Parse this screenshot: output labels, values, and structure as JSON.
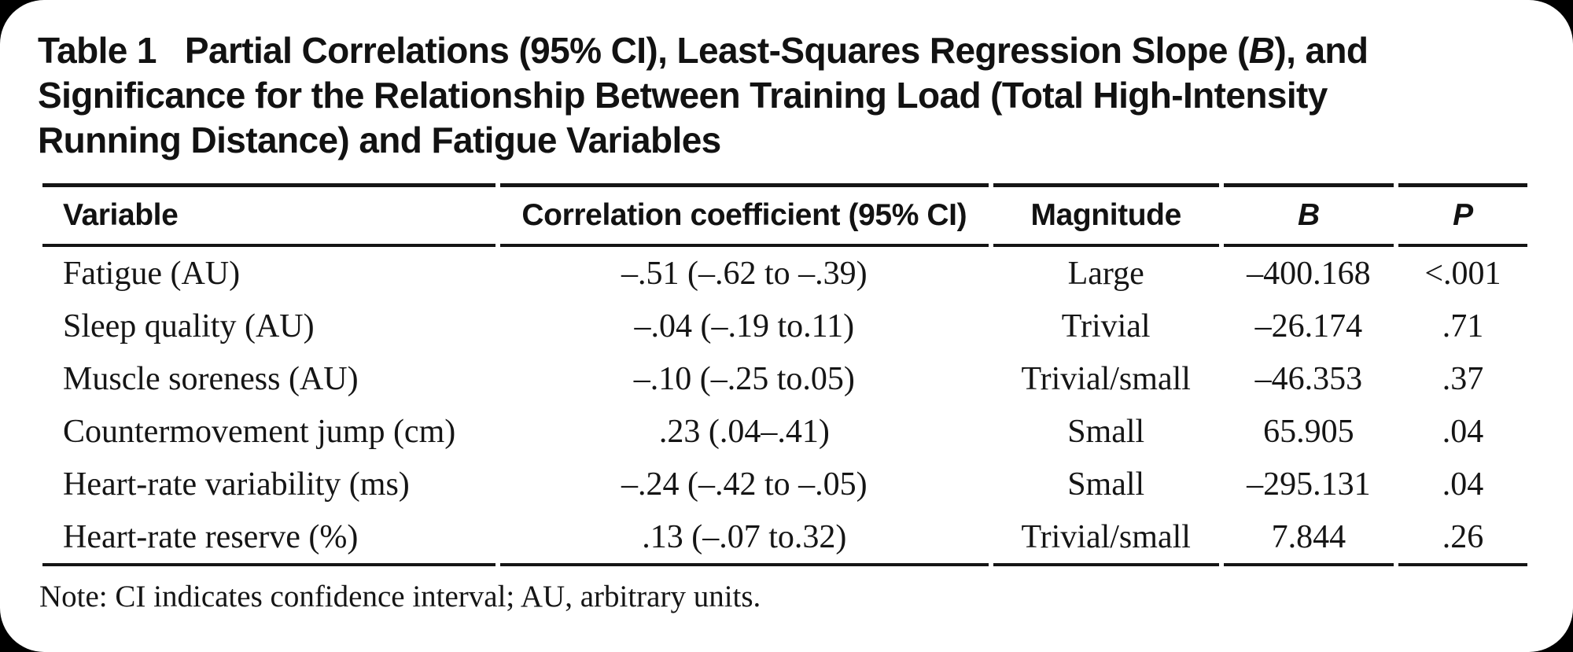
{
  "title_segments": [
    {
      "text": "Table 1",
      "style": "plain"
    },
    {
      "text": "",
      "style": "gap"
    },
    {
      "text": "Partial Correlations (95% CI), Least-Squares Regression Slope (",
      "style": "plain"
    },
    {
      "text": "B",
      "style": "italic"
    },
    {
      "text": "), and",
      "style": "plain"
    },
    {
      "text": "",
      "style": "break"
    },
    {
      "text": "Significance for the Relationship Between Training Load (Total High-Intensity",
      "style": "plain"
    },
    {
      "text": "",
      "style": "break"
    },
    {
      "text": "Running Distance) and Fatigue Variables",
      "style": "plain"
    }
  ],
  "table": {
    "columns": [
      {
        "key": "variable",
        "label": "Variable",
        "align": "left",
        "width": "30.9%",
        "italic": false
      },
      {
        "key": "correlation",
        "label": "Correlation coefficient (95% CI)",
        "align": "center",
        "width": "33.3%",
        "italic": false
      },
      {
        "key": "magnitude",
        "label": "Magnitude",
        "align": "center",
        "width": "15.4%",
        "italic": false
      },
      {
        "key": "b",
        "label": "B",
        "align": "center",
        "width": "11.6%",
        "italic": true
      },
      {
        "key": "p",
        "label": "P",
        "align": "center",
        "width": "8.8%",
        "italic": true
      }
    ],
    "rows": [
      {
        "variable": "Fatigue (AU)",
        "correlation": "–.51 (–.62 to –.39)",
        "magnitude": "Large",
        "b": "–400.168",
        "p": "<.001"
      },
      {
        "variable": "Sleep quality (AU)",
        "correlation": "–.04 (–.19 to.11)",
        "magnitude": "Trivial",
        "b": "–26.174",
        "p": ".71"
      },
      {
        "variable": "Muscle soreness (AU)",
        "correlation": "–.10 (–.25 to.05)",
        "magnitude": "Trivial/small",
        "b": "–46.353",
        "p": ".37"
      },
      {
        "variable": "Countermovement jump (cm)",
        "correlation": ".23 (.04–.41)",
        "magnitude": "Small",
        "b": "65.905",
        "p": ".04"
      },
      {
        "variable": "Heart-rate variability (ms)",
        "correlation": "–.24 (–.42 to –.05)",
        "magnitude": "Small",
        "b": "–295.131",
        "p": ".04"
      },
      {
        "variable": "Heart-rate reserve (%)",
        "correlation": ".13 (–.07 to.32)",
        "magnitude": "Trivial/small",
        "b": "7.844",
        "p": ".26"
      }
    ]
  },
  "note": "Note: CI indicates confidence interval; AU, arbitrary units.",
  "colors": {
    "text": "#151515",
    "card_background": "#ffffff",
    "page_background": "#000000"
  }
}
